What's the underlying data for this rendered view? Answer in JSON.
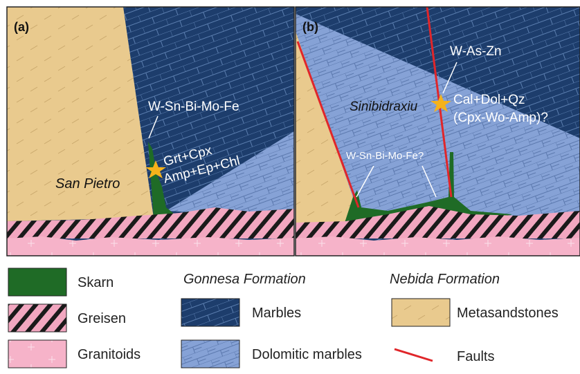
{
  "panel_a": {
    "label": "(a)",
    "mineralization": "W-Sn-Bi-Mo-Fe",
    "assemblage": [
      "Grt+Cpx",
      "Amp+Ep+Chl"
    ],
    "locality": "San Pietro"
  },
  "panel_b": {
    "label": "(b)",
    "mineralization": "W-As-Zn",
    "assemblage": [
      "Cal+Dol+Qz",
      "(Cpx-Wo-Amp)?"
    ],
    "locality": "Sinibidraxiu",
    "secondary_mineralization": "W-Sn-Bi-Mo-Fe?"
  },
  "legend": {
    "items": [
      "Skarn",
      "Greisen",
      "Granitoids"
    ],
    "gonnesa": {
      "title": "Gonnesa Formation",
      "items": [
        "Marbles",
        "Dolomitic marbles"
      ]
    },
    "nebida": {
      "title": "Nebida Formation",
      "items": [
        "Metasandstones",
        "Faults"
      ]
    }
  }
}
